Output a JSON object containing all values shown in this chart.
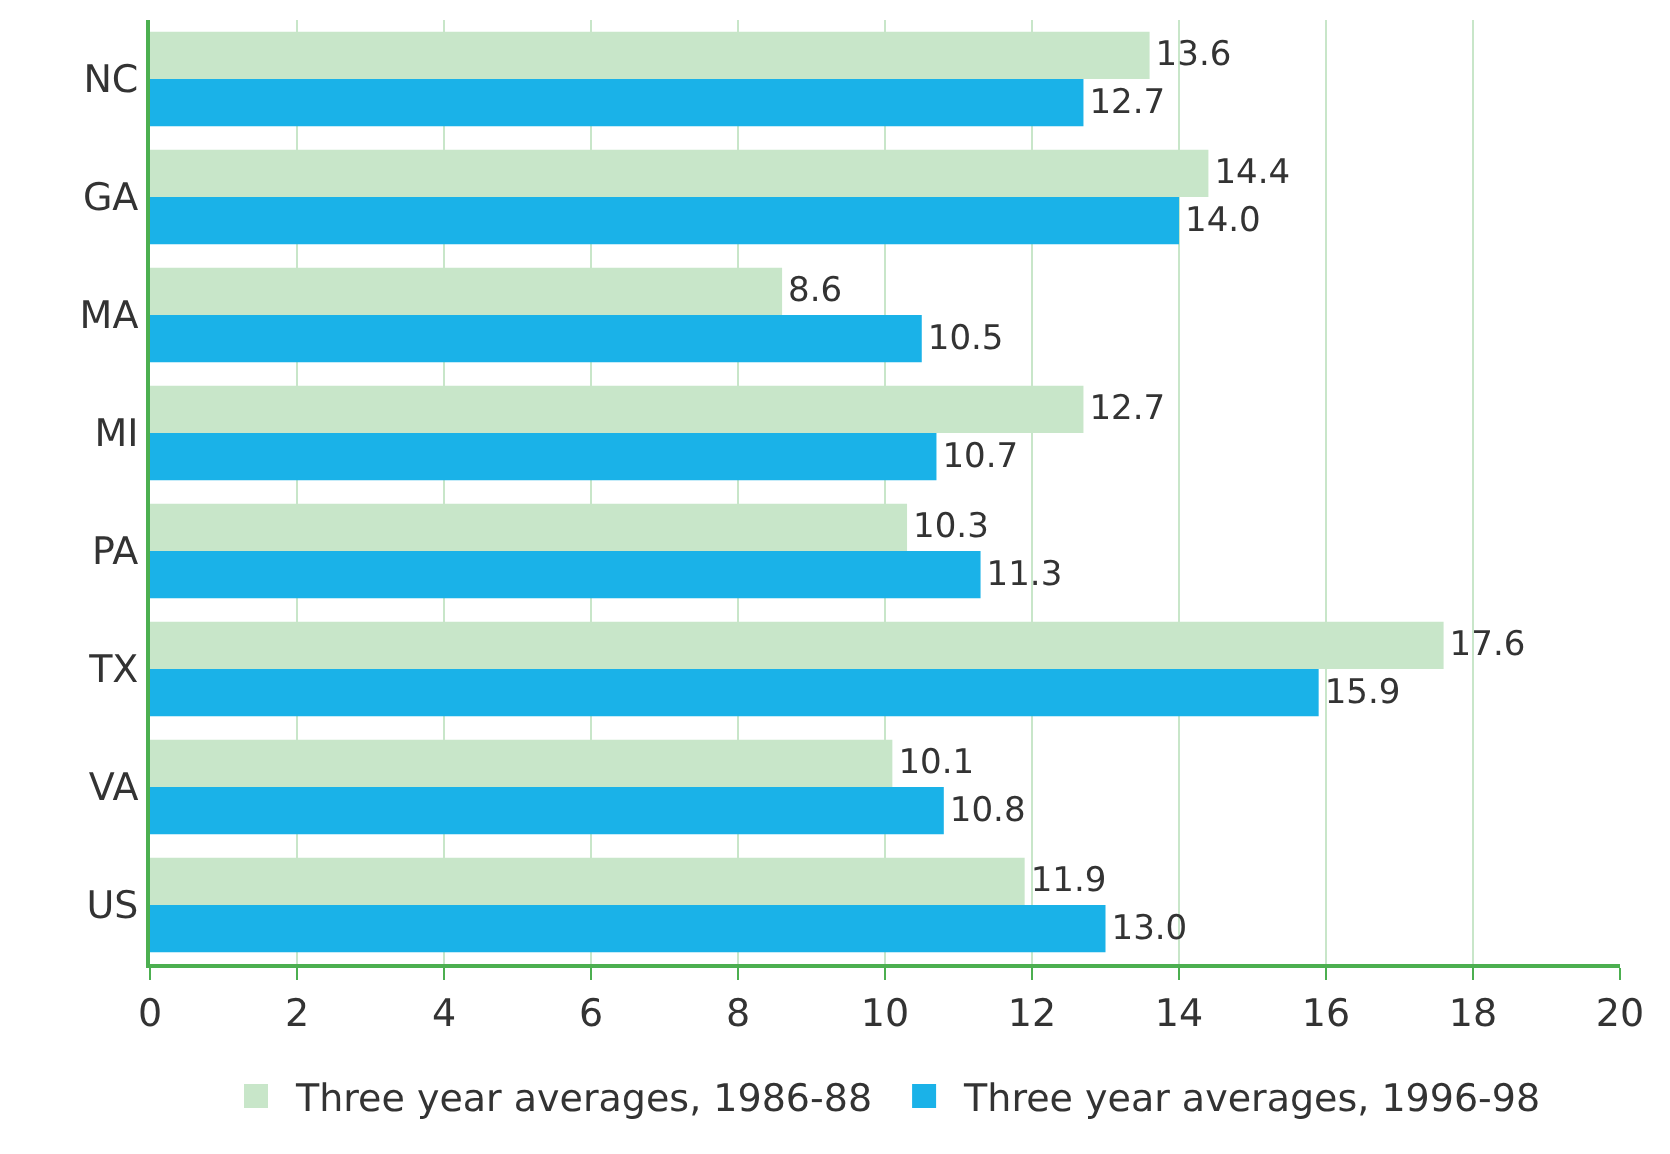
{
  "chart_data": {
    "type": "bar",
    "orientation": "horizontal",
    "categories": [
      "NC",
      "GA",
      "MA",
      "MI",
      "PA",
      "TX",
      "VA",
      "US"
    ],
    "series": [
      {
        "name": "Three year averages, 1986-88",
        "color": "#c8e6c9",
        "values": [
          13.6,
          14.4,
          8.6,
          12.7,
          10.3,
          17.6,
          10.1,
          11.9
        ],
        "value_labels": [
          "13.6",
          "14.4",
          "8.6",
          "12.7",
          "10.3",
          "17.6",
          "10.1",
          "11.9"
        ]
      },
      {
        "name": "Three year averages, 1996-98",
        "color": "#1ab2e8",
        "values": [
          12.7,
          14.0,
          10.5,
          10.7,
          11.3,
          15.9,
          10.8,
          13.0
        ],
        "value_labels": [
          "12.7",
          "14.0",
          "10.5",
          "10.7",
          "11.3",
          "15.9",
          "10.8",
          "13.0"
        ]
      }
    ],
    "xlim": [
      0,
      20
    ],
    "xticks": [
      0,
      2,
      4,
      6,
      8,
      10,
      12,
      14,
      16,
      18,
      20
    ],
    "grid": "x",
    "legend": "bottom"
  }
}
